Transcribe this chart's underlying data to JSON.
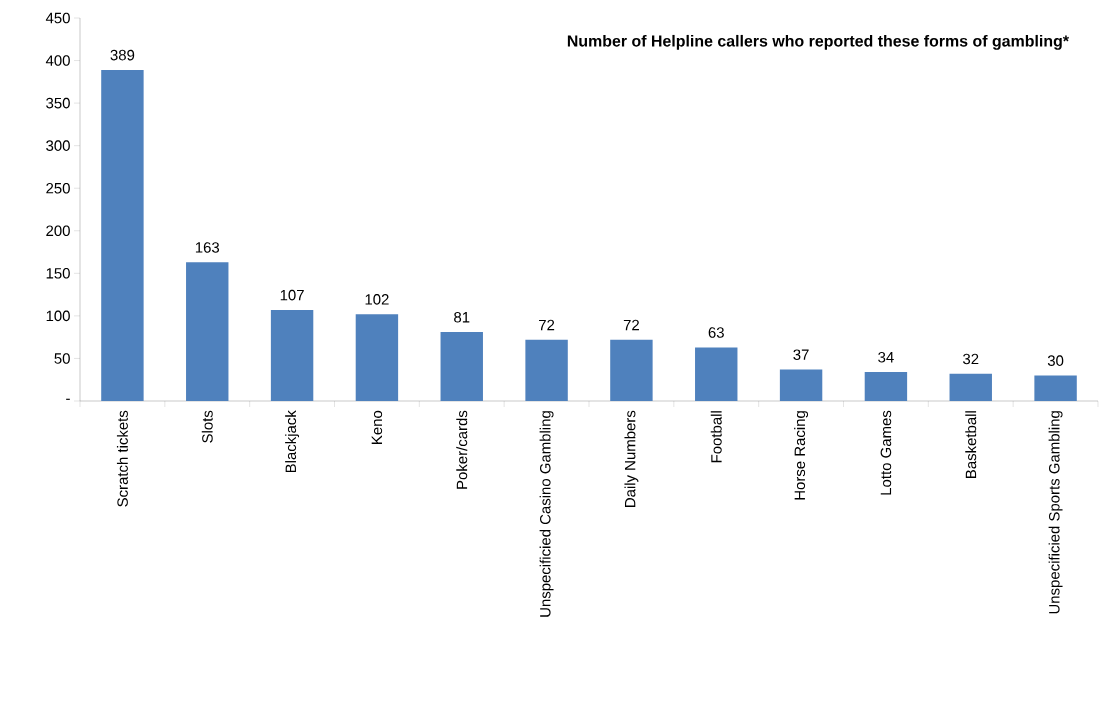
{
  "chart_data": {
    "type": "bar",
    "title": "Number of Helpline callers who reported these forms of gambling*",
    "categories": [
      "Scratch tickets",
      "Slots",
      "Blackjack",
      "Keno",
      "Poker/cards",
      "Unspecificied Casino Gambling",
      "Daily Numbers",
      "Football",
      "Horse Racing",
      "Lotto Games",
      "Basketball",
      "Unspecificied Sports Gambling"
    ],
    "values": [
      389,
      163,
      107,
      102,
      81,
      72,
      72,
      63,
      37,
      34,
      32,
      30
    ],
    "color": "#4f81bd",
    "data_labels": true,
    "ylim": [
      0,
      450
    ],
    "yticks": [
      {
        "value": 0,
        "label": "-"
      },
      50,
      100,
      150,
      200,
      250,
      300,
      350,
      400,
      450
    ]
  }
}
